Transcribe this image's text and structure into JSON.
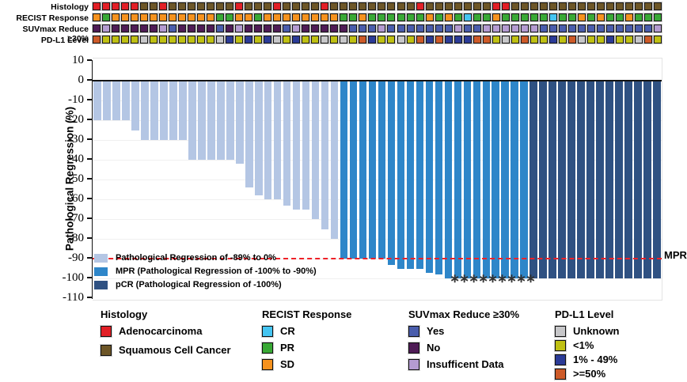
{
  "tracks": {
    "rows": [
      {
        "id": "histology",
        "label": "Histology",
        "values": "RRRRRBBRBBBBBBBRBBBRBBBBRBBBBBBBBBRBBBBBBBRRBBBBBBBBBBBBBBBB"
      },
      {
        "id": "recist",
        "label": "RECIST Response",
        "values": "SPSSSSSSSSSSSPPSSPSSSSSSSSPPSPPPPPPSPSPCPPSPPPPPCPPSPSPPSPPP"
      },
      {
        "id": "suvmax",
        "label": "SUVmax Reduce ≥30%",
        "values": "NINNNNNIYNNNNYNINNNNYINNNNNYYYIYYYYYYYIYYIIIIIIYYYYYYYYYYYYI"
      },
      {
        "id": "pdl1",
        "label": "PD-L1 Level",
        "values": "OGGGGUGGGGGGGUBGBGBUGBGGUGUGOBGGUGOBOBBBOOGUGOGGBGOUGGBGGUOG"
      }
    ],
    "palette": {
      "histology": {
        "R": {
          "label": "Adenocarcinoma",
          "color": "#e21f26"
        },
        "B": {
          "label": "Squamous Cell Cancer",
          "color": "#6d5627"
        }
      },
      "recist": {
        "C": {
          "label": "CR",
          "color": "#45c5f2"
        },
        "P": {
          "label": "PR",
          "color": "#39a935"
        },
        "S": {
          "label": "SD",
          "color": "#f6921e"
        }
      },
      "suvmax": {
        "Y": {
          "label": "Yes",
          "color": "#4a5dac"
        },
        "N": {
          "label": "No",
          "color": "#4f1c56"
        },
        "I": {
          "label": "Insufficent Data",
          "color": "#b49bd1"
        }
      },
      "pdl1": {
        "U": {
          "label": "Unknown",
          "color": "#c7c7c9"
        },
        "G": {
          "label": "<1%",
          "color": "#bfc013"
        },
        "B": {
          "label": "1% - 49%",
          "color": "#2b3b97"
        },
        "O": {
          "label": ">=50%",
          "color": "#cd5a28"
        }
      }
    }
  },
  "chart_data": {
    "type": "bar",
    "subtype": "waterfall",
    "title": "",
    "xlabel": "",
    "ylabel": "Pathological Regression (%)",
    "ylim": [
      -110,
      10
    ],
    "yticks": [
      10,
      0,
      -10,
      -20,
      -30,
      -40,
      -50,
      -60,
      -70,
      -80,
      -90,
      -100,
      -110
    ],
    "grid": "faint horizontal",
    "n_bars": 60,
    "values": [
      -20,
      -20,
      -20,
      -20,
      -25,
      -30,
      -30,
      -30,
      -30,
      -30,
      -40,
      -40,
      -40,
      -40,
      -40,
      -42,
      -54,
      -58,
      -60,
      -60,
      -63,
      -65,
      -65,
      -70,
      -75,
      -80,
      -90,
      -90,
      -90,
      -90,
      -90,
      -93,
      -95,
      -95,
      -95,
      -97,
      -98,
      -100,
      -100,
      -100,
      -100,
      -100,
      -100,
      -100,
      -100,
      -100,
      -100,
      -100,
      -100,
      -100,
      -100,
      -100,
      -100,
      -100,
      -100,
      -100,
      -100,
      -100,
      -100,
      -100
    ],
    "segments": [
      {
        "name": "Pathological Regression of -89% to 0%",
        "color": "#b4c6e4",
        "count": 26
      },
      {
        "name": "MPR (Pathological Regression of -100% to -90%)",
        "color": "#2e86c9",
        "count": 20
      },
      {
        "name": "pCR (Pathological Regression of -100%)",
        "color": "#2f5182",
        "count": 14
      }
    ],
    "reference_line": {
      "value": -90,
      "label": "MPR",
      "color": "#ee2128",
      "style": "dashed"
    },
    "asterisk_bar_indices": [
      38,
      39,
      40,
      41,
      42,
      43,
      44,
      45,
      46
    ],
    "asterisk_symbol": "∗",
    "legend_position": "inside lower-left"
  },
  "bottom_legend": {
    "groups": [
      {
        "title": "Histology",
        "items": [
          {
            "label": "Adenocarcinoma",
            "color": "#e21f26"
          },
          {
            "label": "Squamous Cell Cancer",
            "color": "#6d5627"
          }
        ]
      },
      {
        "title": "RECIST Response",
        "items": [
          {
            "label": "CR",
            "color": "#45c5f2"
          },
          {
            "label": "PR",
            "color": "#39a935"
          },
          {
            "label": "SD",
            "color": "#f6921e"
          }
        ]
      },
      {
        "title": "SUVmax Reduce ≥30%",
        "items": [
          {
            "label": "Yes",
            "color": "#4a5dac"
          },
          {
            "label": "No",
            "color": "#4f1c56"
          },
          {
            "label": "Insufficent Data",
            "color": "#b49bd1"
          }
        ]
      },
      {
        "title": "PD-L1 Level",
        "items": [
          {
            "label": "Unknown",
            "color": "#c7c7c9"
          },
          {
            "label": "<1%",
            "color": "#bfc013"
          },
          {
            "label": "1% - 49%",
            "color": "#2b3b97"
          },
          {
            "label": ">=50%",
            "color": "#cd5a28"
          }
        ]
      }
    ]
  }
}
